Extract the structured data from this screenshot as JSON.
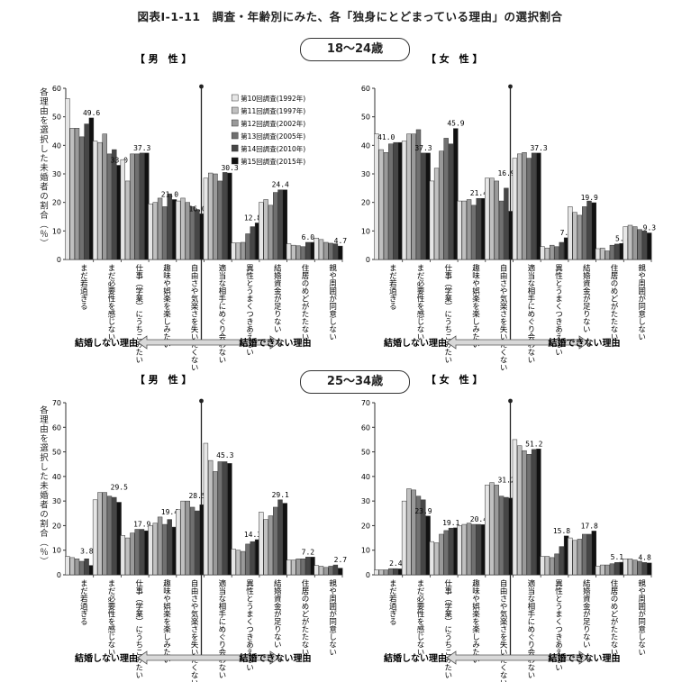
{
  "title": "図表Ⅰ-1-11　調査・年齢別にみた、各「独身にとどまっている理由」の選択割合",
  "y_axis_label": "各理由を選択した未婚者の割合（％）",
  "reason_groups": {
    "left": "結婚しない理由",
    "right": "結婚できない理由"
  },
  "colors": [
    "#e6e6e6",
    "#c0c0c0",
    "#9a9a9a",
    "#707070",
    "#464646",
    "#111111"
  ],
  "chart_data": [
    {
      "type": "bar",
      "age_group": "18〜24歳",
      "sex_label": "【 男　性 】",
      "ylim": [
        0,
        60
      ],
      "yticks": [
        0,
        10,
        20,
        30,
        40,
        50,
        60
      ],
      "legend": [
        "第10回調査(1992年)",
        "第11回調査(1997年)",
        "第12回調査(2002年)",
        "第13回調査(2005年)",
        "第14回調査(2010年)",
        "第15回調査(2015年)"
      ],
      "categories": [
        "まだ若過ぎる",
        "まだ必要性を感じない",
        "仕事（学業）にうちこみたい",
        "趣味や娯楽を楽しみたい",
        "自由さや気楽さを失いたくない",
        "適当な相手にめぐり会わない",
        "異性とうまくつきあえない",
        "結婚資金が足りない",
        "住居のめどがたたない",
        "親や周囲が同意しない"
      ],
      "series": [
        {
          "name": "第10回調査(1992年)",
          "values": [
            56.4,
            41.5,
            35.0,
            19.5,
            20.5,
            28.5,
            5.8,
            20.0,
            5.5,
            7.5
          ]
        },
        {
          "name": "第11回調査(1997年)",
          "values": [
            46.0,
            41.0,
            27.5,
            20.0,
            21.5,
            30.3,
            5.8,
            21.0,
            5.0,
            7.0
          ]
        },
        {
          "name": "第12回調査(2002年)",
          "values": [
            46.0,
            44.0,
            37.0,
            21.5,
            20.0,
            30.0,
            6.0,
            19.0,
            4.8,
            6.0
          ]
        },
        {
          "name": "第13回調査(2005年)",
          "values": [
            43.0,
            37.0,
            37.0,
            18.5,
            18.5,
            27.5,
            9.0,
            23.5,
            4.5,
            5.7
          ]
        },
        {
          "name": "第14回調査(2010年)",
          "values": [
            47.5,
            38.5,
            37.3,
            23.0,
            17.5,
            30.5,
            11.5,
            24.4,
            6.0,
            5.5
          ]
        },
        {
          "name": "第15回調査(2015年)",
          "values": [
            49.6,
            33.0,
            37.3,
            21.0,
            16.0,
            30.3,
            12.8,
            24.4,
            6.0,
            4.7
          ]
        }
      ],
      "labels": [
        "49.6",
        "33.0",
        "37.3",
        "21.0",
        "16.0",
        "30.3",
        "12.8",
        "24.4",
        "6.0",
        "4.7"
      ],
      "label_pos": [
        [
          5,
          49.6
        ],
        [
          5,
          33.0
        ],
        [
          4,
          37.3
        ],
        [
          4,
          21.0
        ],
        [
          4,
          16.0
        ],
        [
          5,
          30.3
        ],
        [
          4,
          12.8
        ],
        [
          4,
          24.4
        ],
        [
          4,
          6.0
        ],
        [
          5,
          4.7
        ]
      ]
    },
    {
      "type": "bar",
      "age_group": "18〜24歳",
      "sex_label": "【 女　性 】",
      "ylim": [
        0,
        60
      ],
      "yticks": [
        0,
        10,
        20,
        30,
        40,
        50,
        60
      ],
      "categories": [
        "まだ若過ぎる",
        "まだ必要性を感じない",
        "仕事（学業）にうちこみたい",
        "趣味や娯楽を楽しみたい",
        "自由さや気楽さを失いたくない",
        "適当な相手にめぐり会わない",
        "異性とうまくつきあえない",
        "結婚資金が足りない",
        "住居のめどがたたない",
        "親や周囲が同意しない"
      ],
      "series": [
        {
          "name": "第10回調査(1992年)",
          "values": [
            44.0,
            41.5,
            27.5,
            20.5,
            28.5,
            35.5,
            4.5,
            18.5,
            3.8,
            11.5
          ]
        },
        {
          "name": "第11回調査(1997年)",
          "values": [
            38.5,
            44.0,
            32.0,
            20.5,
            28.5,
            37.0,
            4.0,
            16.5,
            4.0,
            12.0
          ]
        },
        {
          "name": "第12回調査(2002年)",
          "values": [
            37.5,
            44.0,
            38.0,
            21.0,
            27.5,
            37.5,
            5.0,
            15.5,
            3.0,
            11.5
          ]
        },
        {
          "name": "第13回調査(2005年)",
          "values": [
            40.5,
            45.5,
            42.5,
            19.0,
            20.5,
            35.5,
            4.5,
            18.5,
            5.0,
            10.5
          ]
        },
        {
          "name": "第14回調査(2010年)",
          "values": [
            41.0,
            37.3,
            40.5,
            21.4,
            25.0,
            37.3,
            6.0,
            20.5,
            5.4,
            10.0
          ]
        },
        {
          "name": "第15回調査(2015年)",
          "values": [
            41.0,
            37.3,
            45.9,
            21.4,
            16.9,
            37.3,
            7.6,
            19.9,
            5.6,
            9.3
          ]
        }
      ],
      "labels": [
        "41.0",
        "37.3",
        "45.9",
        "21.4",
        "16.9",
        "37.3",
        "7.6",
        "19.9",
        "5.6",
        "9.3"
      ],
      "label_pos": [
        [
          2,
          41.0
        ],
        [
          4,
          37.3
        ],
        [
          5,
          45.9
        ],
        [
          4,
          21.4
        ],
        [
          4,
          28.5
        ],
        [
          5,
          37.3
        ],
        [
          5,
          7.6
        ],
        [
          4,
          19.9
        ],
        [
          5,
          5.6
        ],
        [
          5,
          9.3
        ]
      ]
    },
    {
      "type": "bar",
      "age_group": "25〜34歳",
      "sex_label": "【 男　性 】",
      "ylim": [
        0,
        70
      ],
      "yticks": [
        0,
        10,
        20,
        30,
        40,
        50,
        60,
        70
      ],
      "categories": [
        "まだ若過ぎる",
        "まだ必要性を感じない",
        "仕事（学業）にうちこみたい",
        "趣味や娯楽を楽しみたい",
        "自由さや気楽さを失いたくない",
        "適当な相手にめぐり会わない",
        "異性とうまくつきあえない",
        "結婚資金が足りない",
        "住居のめどがたたない",
        "親や周囲が同意しない"
      ],
      "series": [
        {
          "name": "第10回調査(1992年)",
          "values": [
            7.5,
            30.5,
            16.0,
            20.0,
            26.5,
            53.5,
            10.5,
            25.5,
            6.0,
            3.8
          ]
        },
        {
          "name": "第11回調査(1997年)",
          "values": [
            7.0,
            33.5,
            15.0,
            21.0,
            30.0,
            46.5,
            10.0,
            22.5,
            6.0,
            3.5
          ]
        },
        {
          "name": "第12回調査(2002年)",
          "values": [
            6.5,
            33.5,
            17.0,
            23.5,
            30.0,
            42.0,
            9.5,
            24.0,
            6.5,
            3.0
          ]
        },
        {
          "name": "第13回調査(2005年)",
          "values": [
            5.5,
            32.0,
            18.5,
            20.5,
            27.5,
            46.0,
            12.5,
            27.5,
            6.5,
            3.5
          ]
        },
        {
          "name": "第14回調査(2010年)",
          "values": [
            6.5,
            31.5,
            18.5,
            22.5,
            26.0,
            46.0,
            13.5,
            30.5,
            7.2,
            4.0
          ]
        },
        {
          "name": "第15回調査(2015年)",
          "values": [
            3.8,
            29.5,
            17.9,
            19.4,
            28.5,
            45.3,
            14.3,
            29.1,
            7.2,
            2.7
          ]
        }
      ],
      "labels": [
        "3.8",
        "29.5",
        "17.9",
        "19.4",
        "28.5",
        "45.3",
        "14.3",
        "29.1",
        "7.2",
        "2.7"
      ],
      "label_pos": [
        [
          4,
          7.5
        ],
        [
          5,
          33.5
        ],
        [
          4,
          18.5
        ],
        [
          4,
          23.5
        ],
        [
          4,
          30.0
        ],
        [
          4,
          46.5
        ],
        [
          4,
          14.3
        ],
        [
          4,
          30.5
        ],
        [
          4,
          7.2
        ],
        [
          5,
          4.0
        ]
      ]
    },
    {
      "type": "bar",
      "age_group": "25〜34歳",
      "sex_label": "【 女　性 】",
      "ylim": [
        0,
        70
      ],
      "yticks": [
        0,
        10,
        20,
        30,
        40,
        50,
        60,
        70
      ],
      "categories": [
        "まだ若過ぎる",
        "まだ必要性を感じない",
        "仕事（学業）にうちこみたい",
        "趣味や娯楽を楽しみたい",
        "自由さや気楽さを失いたくない",
        "適当な相手にめぐり会わない",
        "異性とうまくつきあえない",
        "結婚資金が足りない",
        "住居のめどがたたない",
        "親や周囲が同意しない"
      ],
      "series": [
        {
          "name": "第10回調査(1992年)",
          "values": [
            2.0,
            30.0,
            13.5,
            20.0,
            36.5,
            55.0,
            7.5,
            15.0,
            3.5,
            6.5
          ]
        },
        {
          "name": "第11回調査(1997年)",
          "values": [
            2.0,
            35.0,
            13.0,
            20.5,
            37.5,
            52.5,
            7.5,
            14.0,
            4.0,
            6.5
          ]
        },
        {
          "name": "第12回調査(2002年)",
          "values": [
            2.0,
            34.5,
            16.5,
            21.0,
            36.5,
            50.5,
            7.0,
            14.5,
            4.0,
            6.0
          ]
        },
        {
          "name": "第13回調査(2005年)",
          "values": [
            2.5,
            32.0,
            18.0,
            20.5,
            32.0,
            49.0,
            8.5,
            16.5,
            4.5,
            5.5
          ]
        },
        {
          "name": "第14回調査(2010年)",
          "values": [
            2.5,
            30.5,
            19.0,
            20.5,
            31.5,
            51.0,
            11.5,
            16.5,
            5.0,
            5.0
          ]
        },
        {
          "name": "第15回調査(2015年)",
          "values": [
            2.4,
            23.9,
            19.1,
            20.4,
            31.2,
            51.2,
            15.8,
            17.8,
            5.1,
            4.8
          ]
        }
      ],
      "labels": [
        "2.4",
        "23.9",
        "19.1",
        "20.4",
        "31.2",
        "51.2",
        "15.8",
        "17.8",
        "5.1",
        "4.8"
      ],
      "label_pos": [
        [
          4,
          2.5
        ],
        [
          4,
          23.9
        ],
        [
          4,
          19.1
        ],
        [
          4,
          20.5
        ],
        [
          4,
          36.5
        ],
        [
          4,
          51.2
        ],
        [
          4,
          15.8
        ],
        [
          4,
          17.8
        ],
        [
          4,
          5.1
        ],
        [
          4,
          5.0
        ]
      ]
    }
  ]
}
